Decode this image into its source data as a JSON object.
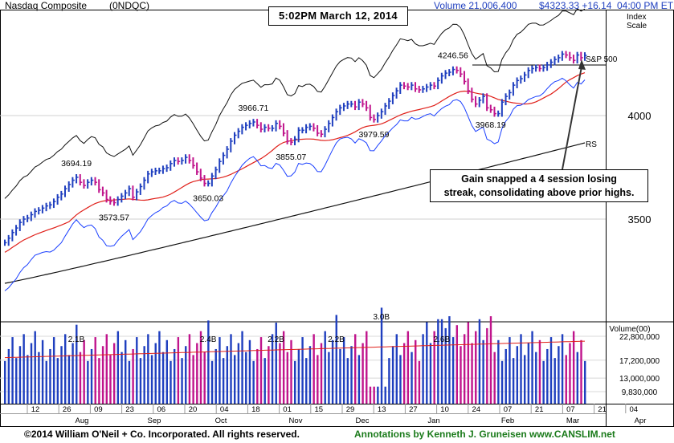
{
  "header": {
    "name": "Nasdaq Composite",
    "symbol": "(0NDQC)",
    "volume": "Volume 21,006,400",
    "price": "$4323.33 +16.14",
    "time": "04:00 PM ET"
  },
  "timestamp": "5:02PM March 12, 2014",
  "footer": {
    "copyright": "©2014 William O'Neil + Co. Incorporated. All rights reserved.",
    "annotations": "Annotations by Kenneth J. Gruneisen www.CANSLIM.net"
  },
  "callout": {
    "line1": "Gain snapped a 4 session losing",
    "line2": "streak, consolidating above prior highs."
  },
  "colors": {
    "up": "#1f3fbf",
    "down": "#c0148c",
    "ma50": "#e0201a",
    "ma200": "#111111",
    "rs": "#1a3fff",
    "sp500": "#111111"
  },
  "chart_data": [
    {
      "type": "line",
      "scale": "log",
      "ylabel": "Index Scale",
      "y_ticks": [
        {
          "value": 3500,
          "label": "3500"
        },
        {
          "value": 4000,
          "label": "4000"
        }
      ],
      "x_date_ticks": [
        "12",
        "26",
        "09",
        "23",
        "06",
        "20",
        "04",
        "18",
        "01",
        "15",
        "29",
        "13",
        "27",
        "10",
        "24",
        "07",
        "21",
        "07",
        "21",
        "04"
      ],
      "x_month_labels": [
        "Aug",
        "Sep",
        "Oct",
        "Nov",
        "Dec",
        "Jan",
        "Feb",
        "Mar",
        "Apr"
      ],
      "price_labels": [
        {
          "text": "3694.19",
          "kind": "high"
        },
        {
          "text": "3573.57",
          "kind": "low"
        },
        {
          "text": "3650.03",
          "kind": "low"
        },
        {
          "text": "3966.71",
          "kind": "high"
        },
        {
          "text": "3855.07",
          "kind": "low"
        },
        {
          "text": "3979.59",
          "kind": "low"
        },
        {
          "text": "4246.56",
          "kind": "high"
        },
        {
          "text": "3968.19",
          "kind": "low"
        }
      ],
      "series_labels": {
        "sp500": "S&P 500",
        "rs": "RS"
      },
      "daily_close": [
        3395,
        3415,
        3440,
        3460,
        3485,
        3500,
        3505,
        3520,
        3535,
        3540,
        3550,
        3560,
        3565,
        3580,
        3600,
        3615,
        3640,
        3660,
        3680,
        3694,
        3670,
        3655,
        3670,
        3680,
        3670,
        3635,
        3620,
        3590,
        3580,
        3575,
        3590,
        3605,
        3620,
        3640,
        3600,
        3625,
        3650,
        3680,
        3710,
        3720,
        3725,
        3725,
        3735,
        3740,
        3760,
        3775,
        3770,
        3775,
        3790,
        3775,
        3750,
        3720,
        3690,
        3665,
        3665,
        3700,
        3730,
        3770,
        3800,
        3830,
        3870,
        3900,
        3920,
        3940,
        3950,
        3960,
        3967,
        3950,
        3930,
        3940,
        3935,
        3935,
        3960,
        3945,
        3910,
        3870,
        3865,
        3880,
        3925,
        3925,
        3940,
        3945,
        3935,
        3910,
        3905,
        3930,
        3960,
        3990,
        4020,
        4040,
        4050,
        4060,
        4060,
        4045,
        4070,
        4060,
        4040,
        3990,
        3980,
        4000,
        4020,
        4050,
        4075,
        4105,
        4130,
        4160,
        4155,
        4150,
        4160,
        4140,
        4135,
        4140,
        4150,
        4160,
        4155,
        4185,
        4210,
        4225,
        4230,
        4245,
        4240,
        4220,
        4180,
        4130,
        4085,
        4060,
        4080,
        4100,
        4040,
        4030,
        4010,
        4010,
        4070,
        4100,
        4120,
        4160,
        4185,
        4195,
        4215,
        4240,
        4250,
        4255,
        4250,
        4255,
        4270,
        4285,
        4300,
        4310,
        4330,
        4325,
        4310,
        4295,
        4325,
        4310,
        4323
      ]
    },
    {
      "type": "bar",
      "ylabel": "Volume(00)",
      "y_ticks": [
        {
          "value": 22800000,
          "label": "22,800,000"
        },
        {
          "value": 17200000,
          "label": "17,200,000"
        },
        {
          "value": 13000000,
          "label": "13,000,000"
        },
        {
          "value": 9830000,
          "label": "9,830,000"
        }
      ],
      "volume_labels": [
        {
          "text": "2.1B"
        },
        {
          "text": "2.4B"
        },
        {
          "text": "2.2B"
        },
        {
          "text": "2.2B"
        },
        {
          "text": "3.0B"
        },
        {
          "text": "2.6B"
        }
      ]
    }
  ]
}
